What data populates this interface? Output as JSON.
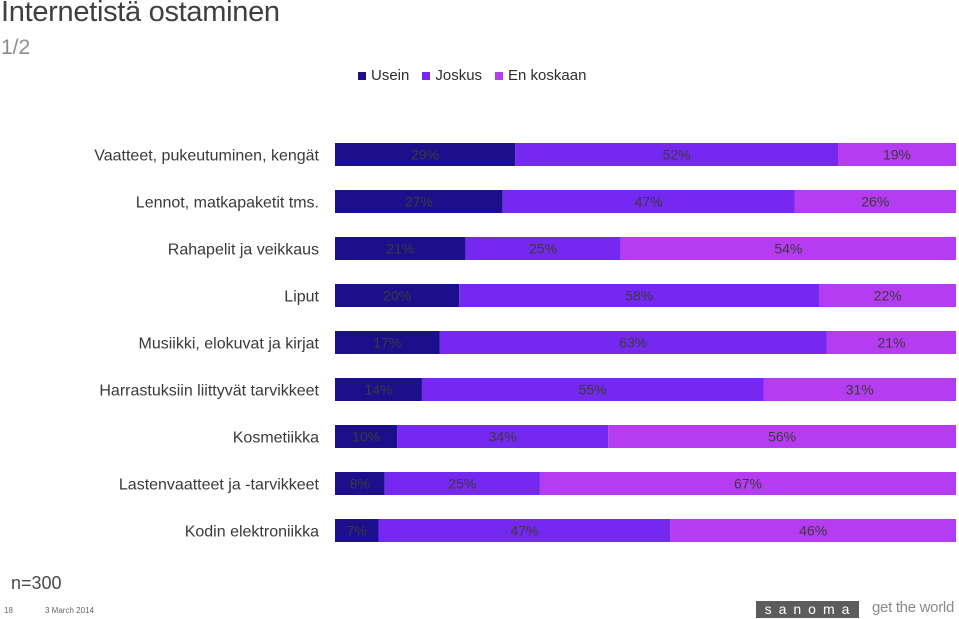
{
  "header": {
    "title": "Internetistä ostaminen",
    "subtitle": "1/2"
  },
  "footer": {
    "sample": "n=300",
    "page_number": "18",
    "date": "3 March 2014",
    "logo_text": "sanoma",
    "tagline": "get the world"
  },
  "colors": {
    "usein": "#1c0f8c",
    "joskus": "#7428f0",
    "en_koskaan": "#b53cf0"
  },
  "chart_data": {
    "type": "bar",
    "orientation": "horizontal",
    "stacked": true,
    "title": "Internetistä ostaminen",
    "categories": [
      "Vaatteet, pukeutuminen, kengät",
      "Lennot, matkapaketit tms.",
      "Rahapelit ja veikkaus",
      "Liput",
      "Musiikki, elokuvat ja kirjat",
      "Harrastuksiin liittyvät tarvikkeet",
      "Kosmetiikka",
      "Lastenvaatteet ja -tarvikkeet",
      "Kodin elektroniikka"
    ],
    "series": [
      {
        "name": "Usein",
        "values": [
          29,
          27,
          21,
          20,
          17,
          14,
          10,
          8,
          7
        ]
      },
      {
        "name": "Joskus",
        "values": [
          52,
          47,
          25,
          58,
          63,
          55,
          34,
          25,
          47
        ]
      },
      {
        "name": "En koskaan",
        "values": [
          19,
          26,
          54,
          22,
          21,
          31,
          56,
          67,
          46
        ]
      }
    ],
    "unit": "%",
    "legend_position": "top"
  }
}
